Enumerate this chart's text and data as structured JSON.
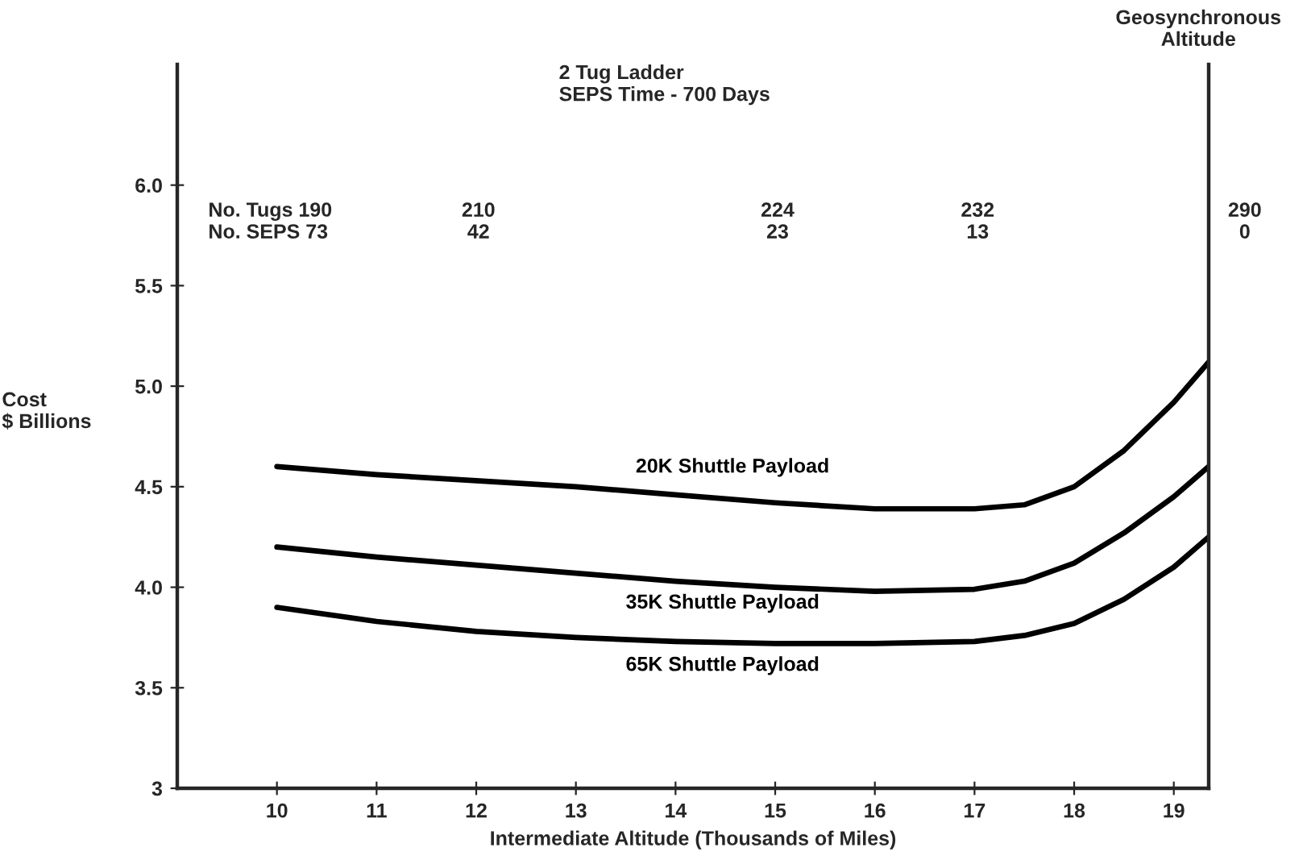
{
  "chart_data": {
    "type": "line",
    "xlabel": "Intermediate Altitude (Thousands of Miles)",
    "ylabel": "Cost\n$ Billions",
    "xlim": [
      9,
      19.35
    ],
    "xticks": [
      10,
      11,
      12,
      13,
      14,
      15,
      16,
      17,
      18,
      19
    ],
    "ylim": [
      3,
      6.6
    ],
    "yticks": [
      3,
      {
        "value": 3.5,
        "label": "3.5"
      },
      {
        "value": 4.0,
        "label": "4.0"
      },
      {
        "value": 4.5,
        "label": "4.5"
      },
      {
        "value": 5.0,
        "label": "5.0"
      },
      {
        "value": 5.5,
        "label": "5.5"
      },
      {
        "value": 6.0,
        "label": "6.0"
      }
    ],
    "x": [
      10,
      11,
      12,
      13,
      14,
      15,
      16,
      17,
      17.5,
      18,
      18.5,
      19,
      19.35
    ],
    "series": [
      {
        "name": "20K Shuttle Payload",
        "color": "#000000",
        "values": [
          4.6,
          4.56,
          4.53,
          4.5,
          4.46,
          4.42,
          4.39,
          4.39,
          4.41,
          4.5,
          4.68,
          4.92,
          5.12
        ]
      },
      {
        "name": "35K Shuttle Payload",
        "color": "#000000",
        "values": [
          4.2,
          4.15,
          4.11,
          4.07,
          4.03,
          4.0,
          3.98,
          3.99,
          4.03,
          4.12,
          4.27,
          4.45,
          4.6
        ]
      },
      {
        "name": "65K Shuttle Payload",
        "color": "#000000",
        "values": [
          3.9,
          3.83,
          3.78,
          3.75,
          3.73,
          3.72,
          3.72,
          3.73,
          3.76,
          3.82,
          3.94,
          4.1,
          4.25
        ]
      }
    ],
    "annotations": [
      "2 Tug Ladder\nSEPS Time - 700 Days",
      "Geosynchronous\nAltitude",
      "No. Tugs 190\nNo. SEPS 73",
      "210\n42",
      "224\n23",
      "232\n13",
      "290\n0"
    ],
    "grid": false,
    "legend": false,
    "marker": "none",
    "line_style": "solid"
  }
}
